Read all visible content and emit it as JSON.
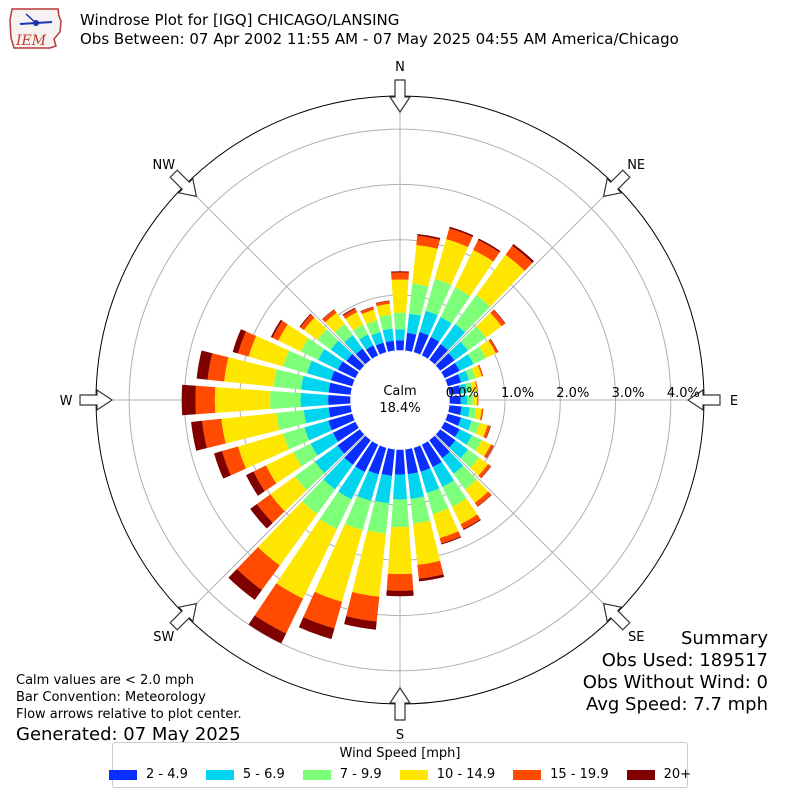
{
  "header": {
    "logo_text": "IEM",
    "title_line1": "Windrose Plot for [IGQ] CHICAGO/LANSING",
    "title_line2": "Obs Between: 07 Apr 2002 11:55 AM - 07 May 2025 04:55 AM America/Chicago"
  },
  "notes": {
    "line1": "Calm values are < 2.0 mph",
    "line2": "Bar Convention: Meteorology",
    "line3": "Flow arrows relative to plot center.",
    "generated": "Generated: 07 May 2025"
  },
  "summary": {
    "title": "Summary",
    "obs_used": "Obs Used: 189517",
    "obs_without_wind": "Obs Without Wind: 0",
    "avg_speed": "Avg Speed: 7.7 mph"
  },
  "legend": {
    "title": "Wind Speed [mph]",
    "items": [
      {
        "label": "2 - 4.9",
        "color": "#0a2eff"
      },
      {
        "label": "5 - 6.9",
        "color": "#00d4ee"
      },
      {
        "label": "7 - 9.9",
        "color": "#7dff7a"
      },
      {
        "label": "10 - 14.9",
        "color": "#ffe600"
      },
      {
        "label": "15 - 19.9",
        "color": "#ff4a00"
      },
      {
        "label": "20+",
        "color": "#800000"
      }
    ]
  },
  "chart_data": {
    "type": "windrose",
    "title": "Windrose Plot for [IGQ] CHICAGO/LANSING",
    "calm_label": "Calm",
    "calm_value": "18.4%",
    "radial_unit": "percent",
    "radial_offset_percent": 0.9,
    "radial_ticks": [
      0,
      1,
      2,
      3,
      4
    ],
    "radial_tick_labels": [
      "0.0%",
      "1.0%",
      "2.0%",
      "3.0%",
      "4.0%"
    ],
    "radial_max": 4.6,
    "compass_labels": [
      "N",
      "NE",
      "E",
      "SE",
      "S",
      "SW",
      "W",
      "NW"
    ],
    "bin_width_deg": 10,
    "bin_gap_deg": 2,
    "speed_bins": [
      "2 - 4.9",
      "5 - 6.9",
      "7 - 9.9",
      "10 - 14.9",
      "15 - 19.9",
      "20+"
    ],
    "colors": [
      "#0a2eff",
      "#00d4ee",
      "#7dff7a",
      "#ffe600",
      "#ff4a00",
      "#800000"
    ],
    "directions": [
      {
        "dir": 0,
        "values": [
          0.18,
          0.2,
          0.3,
          0.6,
          0.13,
          0.02
        ]
      },
      {
        "dir": 10,
        "values": [
          0.32,
          0.35,
          0.55,
          0.7,
          0.17,
          0.03
        ]
      },
      {
        "dir": 20,
        "values": [
          0.38,
          0.4,
          0.6,
          0.75,
          0.2,
          0.03
        ]
      },
      {
        "dir": 30,
        "values": [
          0.37,
          0.4,
          0.6,
          0.75,
          0.2,
          0.03
        ]
      },
      {
        "dir": 40,
        "values": [
          0.35,
          0.45,
          0.65,
          0.9,
          0.2,
          0.04
        ]
      },
      {
        "dir": 50,
        "values": [
          0.32,
          0.3,
          0.4,
          0.35,
          0.08,
          0.01
        ]
      },
      {
        "dir": 60,
        "values": [
          0.3,
          0.28,
          0.25,
          0.2,
          0.04,
          0.01
        ]
      },
      {
        "dir": 70,
        "values": [
          0.25,
          0.15,
          0.12,
          0.12,
          0.03,
          0.0
        ]
      },
      {
        "dir": 80,
        "values": [
          0.2,
          0.12,
          0.1,
          0.08,
          0.02,
          0.0
        ]
      },
      {
        "dir": 90,
        "values": [
          0.2,
          0.12,
          0.1,
          0.08,
          0.02,
          0.0
        ]
      },
      {
        "dir": 100,
        "values": [
          0.22,
          0.15,
          0.12,
          0.1,
          0.03,
          0.0
        ]
      },
      {
        "dir": 110,
        "values": [
          0.25,
          0.2,
          0.15,
          0.15,
          0.05,
          0.01
        ]
      },
      {
        "dir": 120,
        "values": [
          0.3,
          0.25,
          0.2,
          0.18,
          0.05,
          0.01
        ]
      },
      {
        "dir": 130,
        "values": [
          0.34,
          0.28,
          0.25,
          0.2,
          0.06,
          0.01
        ]
      },
      {
        "dir": 140,
        "values": [
          0.4,
          0.35,
          0.35,
          0.3,
          0.08,
          0.01
        ]
      },
      {
        "dir": 150,
        "values": [
          0.45,
          0.4,
          0.4,
          0.35,
          0.1,
          0.02
        ]
      },
      {
        "dir": 160,
        "values": [
          0.45,
          0.4,
          0.4,
          0.45,
          0.1,
          0.02
        ]
      },
      {
        "dir": 170,
        "values": [
          0.45,
          0.45,
          0.45,
          0.75,
          0.25,
          0.05
        ]
      },
      {
        "dir": 180,
        "values": [
          0.45,
          0.45,
          0.5,
          0.85,
          0.3,
          0.1
        ]
      },
      {
        "dir": 190,
        "values": [
          0.48,
          0.5,
          0.55,
          1.15,
          0.45,
          0.15
        ]
      },
      {
        "dir": 200,
        "values": [
          0.5,
          0.5,
          0.55,
          1.35,
          0.5,
          0.2
        ]
      },
      {
        "dir": 210,
        "values": [
          0.55,
          0.55,
          0.6,
          1.4,
          0.7,
          0.2
        ]
      },
      {
        "dir": 220,
        "values": [
          0.55,
          0.55,
          0.55,
          1.15,
          0.55,
          0.22
        ]
      },
      {
        "dir": 230,
        "values": [
          0.5,
          0.5,
          0.45,
          0.55,
          0.3,
          0.15
        ]
      },
      {
        "dir": 240,
        "values": [
          0.45,
          0.45,
          0.35,
          0.55,
          0.25,
          0.15
        ]
      },
      {
        "dir": 250,
        "values": [
          0.45,
          0.45,
          0.4,
          0.85,
          0.3,
          0.15
        ]
      },
      {
        "dir": 260,
        "values": [
          0.4,
          0.45,
          0.5,
          1.0,
          0.35,
          0.2
        ]
      },
      {
        "dir": 270,
        "values": [
          0.4,
          0.5,
          0.55,
          1.0,
          0.35,
          0.25
        ]
      },
      {
        "dir": 280,
        "values": [
          0.4,
          0.5,
          0.5,
          0.9,
          0.3,
          0.2
        ]
      },
      {
        "dir": 290,
        "values": [
          0.4,
          0.45,
          0.45,
          0.65,
          0.2,
          0.1
        ]
      },
      {
        "dir": 300,
        "values": [
          0.35,
          0.4,
          0.35,
          0.45,
          0.12,
          0.03
        ]
      },
      {
        "dir": 310,
        "values": [
          0.3,
          0.35,
          0.3,
          0.3,
          0.08,
          0.02
        ]
      },
      {
        "dir": 320,
        "values": [
          0.25,
          0.3,
          0.25,
          0.25,
          0.07,
          0.01
        ]
      },
      {
        "dir": 330,
        "values": [
          0.2,
          0.22,
          0.2,
          0.25,
          0.07,
          0.02
        ]
      },
      {
        "dir": 340,
        "values": [
          0.18,
          0.2,
          0.22,
          0.2,
          0.05,
          0.01
        ]
      },
      {
        "dir": 350,
        "values": [
          0.18,
          0.22,
          0.25,
          0.2,
          0.05,
          0.01
        ]
      }
    ]
  }
}
